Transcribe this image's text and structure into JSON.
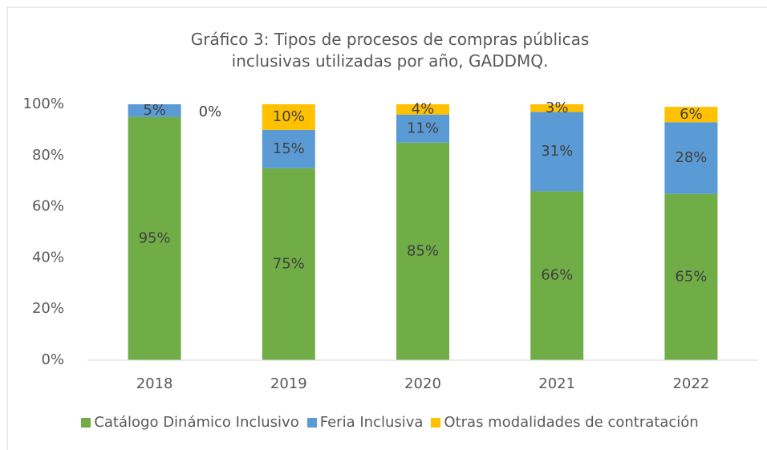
{
  "chart_data": {
    "type": "stacked_bar",
    "title": "Gráfico 3: Tipos de procesos de compras públicas inclusivas utilizadas por año, GADDMQ.",
    "categories": [
      "2018",
      "2019",
      "2020",
      "2021",
      "2022"
    ],
    "series": [
      {
        "name": "Catálogo Dinámico Inclusivo",
        "color": "#70ad47",
        "values": [
          95,
          75,
          85,
          66,
          65
        ],
        "value_labels": [
          "95%",
          "75%",
          "85%",
          "66%",
          "65%"
        ]
      },
      {
        "name": "Feria Inclusiva",
        "color": "#5b9bd5",
        "values": [
          5,
          15,
          11,
          31,
          28
        ],
        "value_labels": [
          "5%",
          "15%",
          "11%",
          "31%",
          "28%"
        ]
      },
      {
        "name": "Otras modalidades de contratación",
        "color": "#ffc000",
        "values": [
          0,
          10,
          4,
          3,
          6
        ],
        "value_labels": [
          "0%",
          "10%",
          "4%",
          "3%",
          "6%"
        ]
      }
    ],
    "ylim": [
      0,
      100
    ],
    "yticks": [
      {
        "value": 0,
        "label": "0%"
      },
      {
        "value": 20,
        "label": "20%"
      },
      {
        "value": 40,
        "label": "40%"
      },
      {
        "value": 60,
        "label": "60%"
      },
      {
        "value": 80,
        "label": "80%"
      },
      {
        "value": 100,
        "label": "100%"
      }
    ],
    "grid": false,
    "legend": "bottom"
  }
}
